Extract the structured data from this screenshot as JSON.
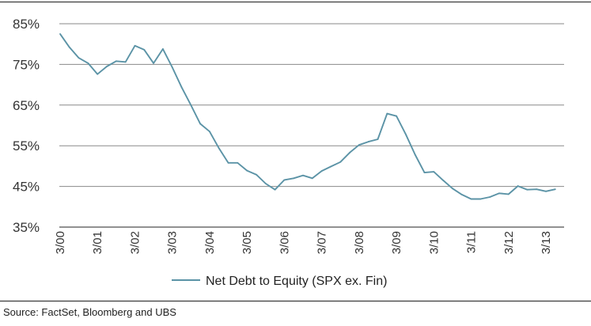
{
  "chart_data": {
    "type": "line",
    "x": [
      "3/00",
      "",
      "",
      "",
      "3/01",
      "",
      "",
      "",
      "3/02",
      "",
      "",
      "",
      "3/03",
      "",
      "",
      "",
      "3/04",
      "",
      "",
      "",
      "3/05",
      "",
      "",
      "",
      "3/06",
      "",
      "",
      "",
      "3/07",
      "",
      "",
      "",
      "3/08",
      "",
      "",
      "",
      "3/09",
      "",
      "",
      "",
      "3/10",
      "",
      "",
      "",
      "3/11",
      "",
      "",
      "",
      "3/12",
      "",
      "",
      "",
      "3/13",
      ""
    ],
    "x_ticks": [
      "3/00",
      "3/01",
      "3/02",
      "3/03",
      "3/04",
      "3/05",
      "3/06",
      "3/07",
      "3/08",
      "3/09",
      "3/10",
      "3/11",
      "3/12",
      "3/13"
    ],
    "series": [
      {
        "name": "Net Debt to Equity (SPX ex. Fin)",
        "color": "#5b93a6",
        "values": [
          82.5,
          79.2,
          76.6,
          75.3,
          72.6,
          74.5,
          75.8,
          75.6,
          79.6,
          78.6,
          75.3,
          78.8,
          74.3,
          69.4,
          65.0,
          60.4,
          58.5,
          54.4,
          50.8,
          50.8,
          48.9,
          47.9,
          45.7,
          44.2,
          46.6,
          47.0,
          47.7,
          47.0,
          48.8,
          49.9,
          51.0,
          53.3,
          55.2,
          56.0,
          56.6,
          62.9,
          62.3,
          57.8,
          52.8,
          48.4,
          48.6,
          46.5,
          44.5,
          43.0,
          41.9,
          41.9,
          42.4,
          43.3,
          43.1,
          45.1,
          44.2,
          44.3,
          43.8,
          44.3
        ]
      }
    ],
    "y_ticks": [
      "85%",
      "75%",
      "65%",
      "55%",
      "45%",
      "35%"
    ],
    "ylim": [
      35,
      85
    ],
    "grid": "horizontal",
    "legend": "bottom-center"
  },
  "source_text": "Source:  FactSet, Bloomberg and UBS"
}
